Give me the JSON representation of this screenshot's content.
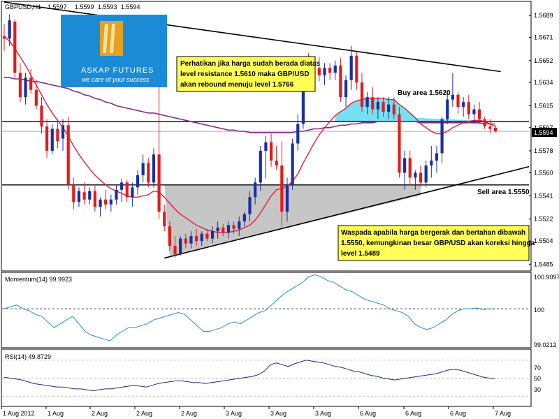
{
  "header": {
    "symbol": "GBPUSD,H1",
    "ohlc": [
      "1.5597",
      "1.5599",
      "1.5593",
      "1.5594"
    ]
  },
  "current_price_label": "1.5594",
  "logo": {
    "name": "ASKAP FUTURES",
    "tagline": "we care of your success"
  },
  "notes": {
    "top": [
      "Perhatikan jika harga sudah berada diatas",
      "level  resistance  1.5610  maka  GBP/USD",
      "akan rebound menuju level 1.5766"
    ],
    "bottom": [
      "Waspada apabila harga bergerak dan bertahan dibawah",
      "1.5550, kemungkinan besar GBP/USD akan koreksi hingga",
      "level 1.5489"
    ]
  },
  "annotations": {
    "buy_area": "Buy area 1.5620",
    "sell_area": "Sell area 1.5550"
  },
  "panels": {
    "momentum": {
      "label": "Momentum(14) 99.9923",
      "ticks": [
        "100.9097",
        "100",
        "99.0212"
      ]
    },
    "rsi": {
      "label": "RSI(14) 49.8729",
      "ticks": [
        "70",
        "50",
        "30"
      ]
    }
  },
  "colors": {
    "bull": "#1a2fa0",
    "bear": "#e41b1b",
    "ma_fast": "#e0203a",
    "ma_slow": "#8a2a8a",
    "momentum_line": "#1c8fd6",
    "rsi_line": "#1a2a8a",
    "buy_fill": "#66ddf0",
    "sell_fill": "#c0c0c0",
    "note_bg": "#ffff55",
    "logo_bg": "#1c8bd6"
  },
  "chart_data": [
    {
      "type": "candlestick",
      "symbol": "GBPUSD",
      "timeframe": "H1",
      "y_ticks": [
        1.5689,
        1.5671,
        1.5652,
        1.5634,
        1.5615,
        1.5597,
        1.5578,
        1.556,
        1.5541,
        1.5522,
        1.5504,
        1.5485
      ],
      "x_ticks": [
        "1 Aug 2012",
        "1 Aug",
        "2 Aug",
        "2 Aug",
        "2 Aug",
        "3 Aug",
        "3 Aug",
        "3 Aug",
        "6 Aug",
        "6 Aug",
        "6 Aug",
        "7 Aug"
      ],
      "ylim": [
        1.548,
        1.57
      ],
      "horizontal_levels": [
        1.5602,
        1.555
      ],
      "current_price": 1.5594,
      "candles": [
        [
          1.5672,
          1.5682,
          1.566,
          1.567
        ],
        [
          1.567,
          1.569,
          1.5664,
          1.5685
        ],
        [
          1.5684,
          1.5686,
          1.5638,
          1.5642
        ],
        [
          1.5642,
          1.565,
          1.5618,
          1.5622
        ],
        [
          1.5622,
          1.5642,
          1.5616,
          1.5638
        ],
        [
          1.5638,
          1.5645,
          1.5625,
          1.5628
        ],
        [
          1.5628,
          1.5636,
          1.5612,
          1.5615
        ],
        [
          1.5615,
          1.5622,
          1.5592,
          1.5598
        ],
        [
          1.5598,
          1.5604,
          1.5572,
          1.5578
        ],
        [
          1.5578,
          1.56,
          1.5575,
          1.5596
        ],
        [
          1.5596,
          1.5604,
          1.558,
          1.5586
        ],
        [
          1.5588,
          1.5604,
          1.5578,
          1.5599
        ],
        [
          1.5599,
          1.5606,
          1.5546,
          1.555
        ],
        [
          1.555,
          1.5556,
          1.553,
          1.5536
        ],
        [
          1.5536,
          1.5548,
          1.5532,
          1.5545
        ],
        [
          1.5544,
          1.5552,
          1.5534,
          1.5538
        ],
        [
          1.5538,
          1.5548,
          1.5534,
          1.5545
        ],
        [
          1.5545,
          1.555,
          1.5528,
          1.5532
        ],
        [
          1.5532,
          1.554,
          1.5524,
          1.5538
        ],
        [
          1.5538,
          1.5546,
          1.553,
          1.5534
        ],
        [
          1.5534,
          1.5542,
          1.5528,
          1.5538
        ],
        [
          1.5538,
          1.555,
          1.5534,
          1.5546
        ],
        [
          1.5546,
          1.5555,
          1.5536,
          1.5552
        ],
        [
          1.5552,
          1.5554,
          1.5536,
          1.554
        ],
        [
          1.554,
          1.5552,
          1.5532,
          1.5548
        ],
        [
          1.5548,
          1.5562,
          1.5542,
          1.5558
        ],
        [
          1.5558,
          1.5575,
          1.5552,
          1.5568
        ],
        [
          1.5568,
          1.5572,
          1.5548,
          1.5552
        ],
        [
          1.5552,
          1.558,
          1.5548,
          1.5575
        ],
        [
          1.5575,
          1.5678,
          1.5522,
          1.5528
        ],
        [
          1.5528,
          1.5534,
          1.5512,
          1.5516
        ],
        [
          1.5516,
          1.552,
          1.5496,
          1.55
        ],
        [
          1.55,
          1.5508,
          1.549,
          1.5493
        ],
        [
          1.5493,
          1.5508,
          1.5492,
          1.5506
        ],
        [
          1.5506,
          1.551,
          1.5498,
          1.5502
        ],
        [
          1.5502,
          1.5512,
          1.5498,
          1.5508
        ],
        [
          1.5508,
          1.5514,
          1.55,
          1.5504
        ],
        [
          1.5504,
          1.5512,
          1.55,
          1.551
        ],
        [
          1.551,
          1.5514,
          1.5504,
          1.5506
        ],
        [
          1.5506,
          1.5516,
          1.5502,
          1.5512
        ],
        [
          1.5512,
          1.552,
          1.5506,
          1.5515
        ],
        [
          1.5515,
          1.5518,
          1.5508,
          1.5511
        ],
        [
          1.5511,
          1.552,
          1.5506,
          1.5517
        ],
        [
          1.5517,
          1.552,
          1.551,
          1.5514
        ],
        [
          1.5514,
          1.5524,
          1.5508,
          1.552
        ],
        [
          1.552,
          1.5528,
          1.5516,
          1.5526
        ],
        [
          1.5526,
          1.5545,
          1.552,
          1.554
        ],
        [
          1.554,
          1.5556,
          1.5534,
          1.5552
        ],
        [
          1.5552,
          1.5582,
          1.5545,
          1.5578
        ],
        [
          1.5578,
          1.559,
          1.5555,
          1.5585
        ],
        [
          1.5585,
          1.5592,
          1.5565,
          1.557
        ],
        [
          1.557,
          1.5582,
          1.5562,
          1.5566
        ],
        [
          1.5566,
          1.5586,
          1.5516,
          1.5528
        ],
        [
          1.5528,
          1.5556,
          1.552,
          1.555
        ],
        [
          1.555,
          1.5588,
          1.5546,
          1.5584
        ],
        [
          1.5584,
          1.5608,
          1.5578,
          1.56
        ],
        [
          1.56,
          1.5655,
          1.5596,
          1.565
        ],
        [
          1.565,
          1.5658,
          1.563,
          1.5638
        ],
        [
          1.5638,
          1.565,
          1.5632,
          1.5646
        ],
        [
          1.5646,
          1.5655,
          1.5635,
          1.564
        ],
        [
          1.564,
          1.565,
          1.5632,
          1.5646
        ],
        [
          1.5646,
          1.565,
          1.5636,
          1.5642
        ],
        [
          1.5642,
          1.5652,
          1.5636,
          1.5648
        ],
        [
          1.5648,
          1.5654,
          1.5618,
          1.5622
        ],
        [
          1.5622,
          1.564,
          1.5614,
          1.5636
        ],
        [
          1.5636,
          1.5664,
          1.5628,
          1.5656
        ],
        [
          1.5656,
          1.566,
          1.5628,
          1.5634
        ],
        [
          1.5634,
          1.5642,
          1.561,
          1.5614
        ],
        [
          1.5614,
          1.5626,
          1.5608,
          1.5622
        ],
        [
          1.5622,
          1.563,
          1.5608,
          1.5612
        ],
        [
          1.5612,
          1.5622,
          1.5604,
          1.5618
        ],
        [
          1.5618,
          1.5622,
          1.5606,
          1.561
        ],
        [
          1.561,
          1.5622,
          1.5604,
          1.5616
        ],
        [
          1.5616,
          1.5622,
          1.5604,
          1.5608
        ],
        [
          1.5608,
          1.5614,
          1.5556,
          1.556
        ],
        [
          1.556,
          1.5578,
          1.5546,
          1.5572
        ],
        [
          1.5572,
          1.5578,
          1.555,
          1.5556
        ],
        [
          1.5556,
          1.5562,
          1.5546,
          1.556
        ],
        [
          1.556,
          1.5566,
          1.5548,
          1.5552
        ],
        [
          1.5552,
          1.557,
          1.5548,
          1.5566
        ],
        [
          1.5566,
          1.5582,
          1.5556,
          1.557
        ],
        [
          1.557,
          1.5582,
          1.556,
          1.5576
        ],
        [
          1.5576,
          1.5606,
          1.5568,
          1.5604
        ],
        [
          1.5604,
          1.5625,
          1.56,
          1.562
        ],
        [
          1.562,
          1.5642,
          1.5614,
          1.5624
        ],
        [
          1.5624,
          1.5626,
          1.5608,
          1.5614
        ],
        [
          1.5614,
          1.5622,
          1.5606,
          1.5618
        ],
        [
          1.5618,
          1.5624,
          1.5604,
          1.5608
        ],
        [
          1.5608,
          1.5616,
          1.56,
          1.5612
        ],
        [
          1.5612,
          1.5618,
          1.56,
          1.5604
        ],
        [
          1.5604,
          1.5606,
          1.5596,
          1.5598
        ],
        [
          1.5598,
          1.5604,
          1.5592,
          1.5596
        ],
        [
          1.5597,
          1.5599,
          1.5593,
          1.5594
        ]
      ],
      "ma_fast": [
        1.5672,
        1.5668,
        1.5662,
        1.5655,
        1.5648,
        1.564,
        1.5632,
        1.5624,
        1.5616,
        1.5609,
        1.5603,
        1.5597,
        1.559,
        1.5582,
        1.5575,
        1.5569,
        1.5563,
        1.5558,
        1.5554,
        1.555,
        1.5547,
        1.5545,
        1.5543,
        1.5541,
        1.554,
        1.554,
        1.5541,
        1.5542,
        1.5545,
        1.5544,
        1.554,
        1.5535,
        1.553,
        1.5526,
        1.5523,
        1.552,
        1.5517,
        1.5515,
        1.5513,
        1.5512,
        1.5511,
        1.5511,
        1.5511,
        1.5512,
        1.5513,
        1.5515,
        1.5517,
        1.5521,
        1.5527,
        1.5534,
        1.5541,
        1.5546,
        1.5547,
        1.5549,
        1.5553,
        1.5559,
        1.5568,
        1.5576,
        1.5584,
        1.5591,
        1.5597,
        1.5602,
        1.5607,
        1.561,
        1.5613,
        1.5617,
        1.5619,
        1.562,
        1.5621,
        1.5621,
        1.5621,
        1.5621,
        1.562,
        1.562,
        1.5616,
        1.5613,
        1.5609,
        1.5605,
        1.56,
        1.5597,
        1.5594,
        1.5592,
        1.5592,
        1.5594,
        1.5597,
        1.5599,
        1.5601,
        1.5602,
        1.5603,
        1.5603,
        1.5602,
        1.56,
        1.5598
      ],
      "ma_slow": [
        1.5638,
        1.5638,
        1.5637,
        1.5637,
        1.5636,
        1.5635,
        1.5635,
        1.5634,
        1.5633,
        1.5632,
        1.5631,
        1.563,
        1.5629,
        1.5627,
        1.5626,
        1.5624,
        1.5623,
        1.5621,
        1.562,
        1.5618,
        1.5617,
        1.5615,
        1.5614,
        1.5613,
        1.5612,
        1.5611,
        1.561,
        1.5609,
        1.5609,
        1.5608,
        1.5607,
        1.5606,
        1.5605,
        1.5604,
        1.5603,
        1.5602,
        1.5601,
        1.56,
        1.5599,
        1.5598,
        1.5597,
        1.5596,
        1.5595,
        1.5595,
        1.5594,
        1.5594,
        1.5593,
        1.5593,
        1.5593,
        1.5593,
        1.5593,
        1.5593,
        1.5593,
        1.5593,
        1.5593,
        1.5594,
        1.5594,
        1.5595,
        1.5596,
        1.5596,
        1.5597,
        1.5597,
        1.5598,
        1.5599,
        1.5599,
        1.56,
        1.56,
        1.5601,
        1.5601,
        1.5601,
        1.5602,
        1.5602,
        1.5602,
        1.5602,
        1.5602,
        1.5602,
        1.5602,
        1.5602,
        1.5601,
        1.5601,
        1.5601,
        1.5601,
        1.5601,
        1.5601,
        1.5601,
        1.5601,
        1.5601,
        1.5601,
        1.5601,
        1.5601,
        1.56,
        1.56,
        1.56
      ],
      "trendlines": [
        {
          "from": [
            0,
            1.57
          ],
          "to": [
            93,
            1.5643
          ]
        },
        {
          "from": [
            30,
            1.549
          ],
          "to": [
            100,
            1.5565
          ]
        }
      ]
    },
    {
      "type": "line",
      "name": "Momentum(14)",
      "ylim": [
        99.0212,
        100.9097
      ],
      "y_ticks": [
        100.9097,
        100,
        99.0212
      ],
      "reference": 100,
      "values": [
        100.0,
        100.05,
        100.1,
        100.0,
        99.95,
        99.85,
        99.8,
        99.65,
        99.5,
        99.6,
        99.7,
        99.8,
        99.6,
        99.4,
        99.3,
        99.25,
        99.2,
        99.15,
        99.3,
        99.4,
        99.5,
        99.5,
        99.55,
        99.6,
        99.7,
        99.75,
        99.8,
        99.85,
        99.9,
        99.85,
        99.7,
        99.55,
        99.4,
        99.4,
        99.45,
        99.5,
        99.6,
        99.65,
        99.6,
        99.7,
        99.8,
        99.9,
        99.95,
        100.1,
        100.25,
        100.4,
        100.5,
        100.6,
        100.7,
        100.85,
        100.9,
        100.85,
        100.75,
        100.7,
        100.6,
        100.5,
        100.45,
        100.35,
        100.25,
        100.2,
        100.15,
        100.1,
        100.0,
        99.95,
        99.9,
        99.8,
        99.6,
        99.5,
        99.45,
        99.5,
        99.6,
        99.7,
        99.85,
        99.95,
        100.0,
        100.0,
        100.02,
        99.98,
        100.0,
        99.99
      ]
    },
    {
      "type": "line",
      "name": "RSI(14)",
      "ylim": [
        20,
        80
      ],
      "y_ticks": [
        70,
        50,
        30
      ],
      "grid": [
        70,
        50,
        30
      ],
      "values": [
        51,
        50,
        49,
        48,
        46,
        44,
        43,
        42,
        41,
        40,
        40,
        39,
        38,
        38,
        37,
        36,
        37,
        38,
        38,
        39,
        40,
        41,
        42,
        41,
        40,
        42,
        44,
        45,
        46,
        47,
        47,
        46,
        45,
        45,
        44,
        45,
        46,
        47,
        48,
        49,
        50,
        51,
        52,
        54,
        58,
        65,
        67,
        65,
        63,
        66,
        68,
        70,
        69,
        68,
        67,
        65,
        63,
        62,
        60,
        58,
        57,
        55,
        53,
        52,
        50,
        49,
        48,
        49,
        50,
        51,
        52,
        53,
        54,
        55,
        57,
        59,
        60,
        59,
        57,
        55,
        53,
        51,
        50,
        49.87
      ]
    }
  ]
}
